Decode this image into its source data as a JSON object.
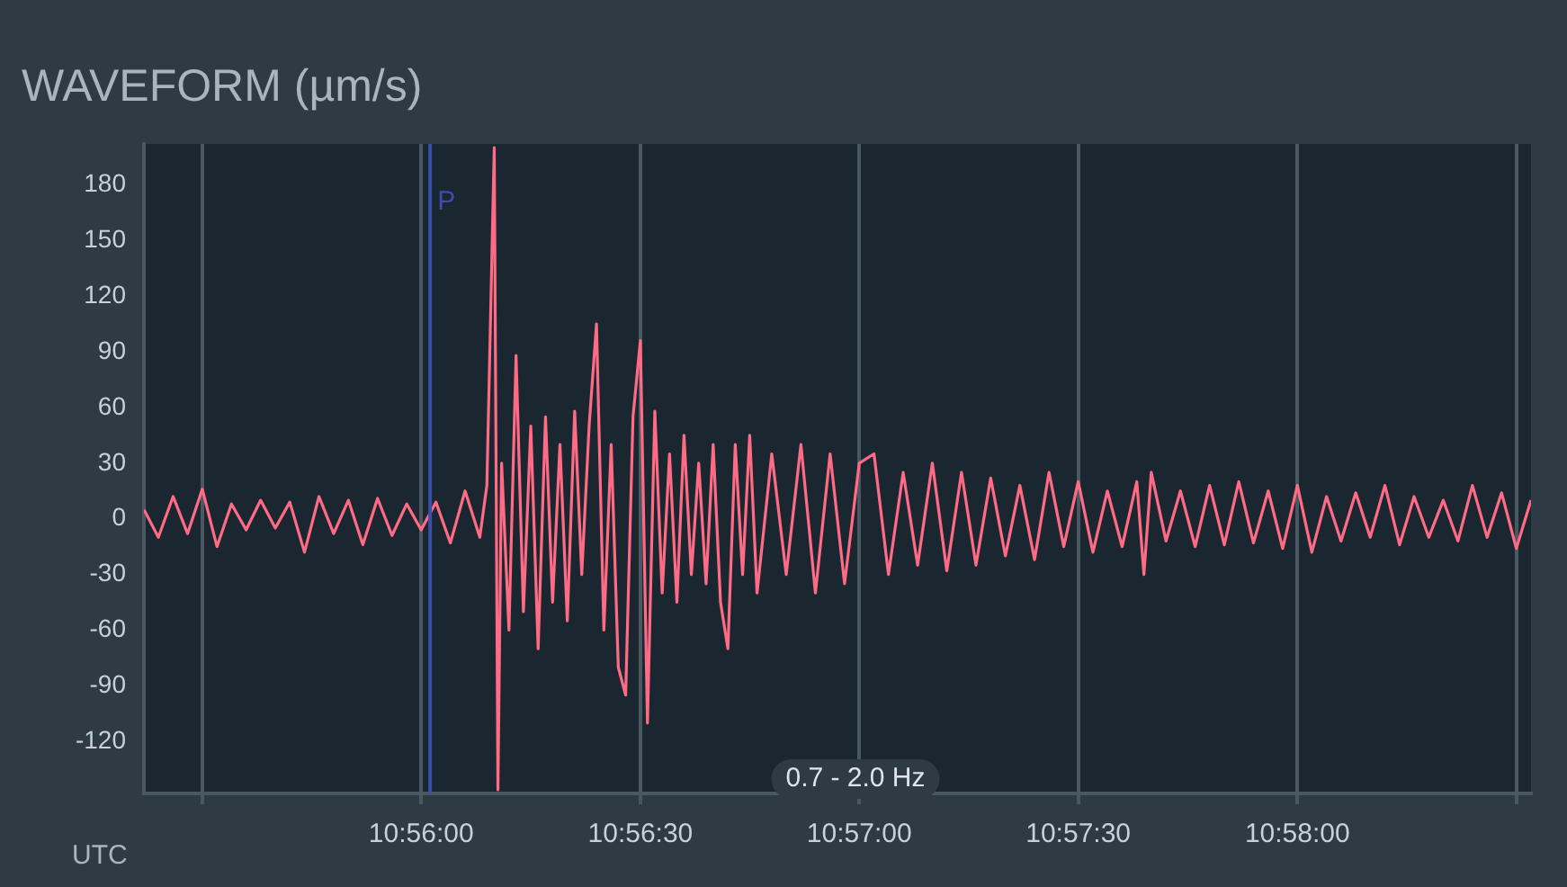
{
  "chart_data": {
    "type": "line",
    "title": "WAVEFORM (µm/s)",
    "xlabel": "UTC",
    "annotations": [
      "0.7 - 2.0 Hz"
    ],
    "ref_lines": [
      {
        "axis": "x",
        "value": 10.93367,
        "label": "P",
        "color": "#3b4fa8"
      }
    ],
    "xlim": [
      10.92278,
      10.97556
    ],
    "ylim": [
      -148,
      202
    ],
    "xticks": [
      {
        "value": 10.925,
        "label": null
      },
      {
        "value": 10.93333,
        "label": "10:56:00"
      },
      {
        "value": 10.94167,
        "label": "10:56:30"
      },
      {
        "value": 10.95,
        "label": "10:57:00"
      },
      {
        "value": 10.95833,
        "label": "10:57:30"
      },
      {
        "value": 10.96667,
        "label": "10:58:00"
      },
      {
        "value": 10.975,
        "label": null
      }
    ],
    "yticks": [
      -120,
      -90,
      -60,
      -30,
      0,
      30,
      60,
      90,
      120,
      150,
      180
    ],
    "grid": "x",
    "legend": false,
    "marker": "none",
    "line_style": "solid",
    "series": [
      {
        "color": "#ff6b85",
        "x": [
          10.92278,
          10.92333,
          10.92389,
          10.92444,
          10.925,
          10.92556,
          10.92611,
          10.92667,
          10.92722,
          10.92778,
          10.92833,
          10.92889,
          10.92944,
          10.93,
          10.93056,
          10.93111,
          10.93167,
          10.93222,
          10.93278,
          10.93333,
          10.93389,
          10.93444,
          10.935,
          10.93556,
          10.93583,
          10.93611,
          10.93625,
          10.93639,
          10.93667,
          10.93694,
          10.93722,
          10.9375,
          10.93778,
          10.93806,
          10.93833,
          10.93861,
          10.93889,
          10.93917,
          10.93944,
          10.93972,
          10.94,
          10.94028,
          10.94056,
          10.94083,
          10.94111,
          10.94139,
          10.94167,
          10.94194,
          10.94222,
          10.9425,
          10.94278,
          10.94306,
          10.94333,
          10.94361,
          10.94389,
          10.94417,
          10.94444,
          10.94472,
          10.945,
          10.94528,
          10.94556,
          10.94583,
          10.94611,
          10.94667,
          10.94722,
          10.94778,
          10.94833,
          10.94889,
          10.94944,
          10.95,
          10.95056,
          10.95111,
          10.95167,
          10.95222,
          10.95278,
          10.95333,
          10.95389,
          10.95444,
          10.955,
          10.95556,
          10.95611,
          10.95667,
          10.95722,
          10.95778,
          10.95833,
          10.95889,
          10.95944,
          10.96,
          10.96056,
          10.96083,
          10.96111,
          10.96167,
          10.96222,
          10.96278,
          10.96333,
          10.96389,
          10.96444,
          10.965,
          10.96556,
          10.96611,
          10.96667,
          10.96722,
          10.96778,
          10.96833,
          10.96889,
          10.96944,
          10.97,
          10.97056,
          10.97111,
          10.97167,
          10.97222,
          10.97278,
          10.97333,
          10.97389,
          10.97444,
          10.975,
          10.97556
        ],
        "values": [
          5,
          -10,
          12,
          -8,
          16,
          -15,
          8,
          -6,
          10,
          -5,
          9,
          -18,
          12,
          -8,
          10,
          -14,
          11,
          -9,
          8,
          -6,
          9,
          -13,
          15,
          -10,
          18,
          200,
          -146,
          30,
          -60,
          88,
          -50,
          50,
          -70,
          55,
          -45,
          40,
          -55,
          58,
          -30,
          50,
          105,
          -60,
          40,
          -80,
          -95,
          55,
          96,
          -110,
          58,
          -40,
          35,
          -45,
          45,
          -30,
          30,
          -35,
          40,
          -45,
          -70,
          40,
          -30,
          45,
          -40,
          35,
          -30,
          40,
          -40,
          35,
          -35,
          30,
          35,
          -30,
          25,
          -25,
          30,
          -28,
          25,
          -25,
          22,
          -20,
          18,
          -22,
          25,
          -15,
          20,
          -18,
          15,
          -15,
          20,
          -30,
          25,
          -12,
          15,
          -15,
          18,
          -14,
          20,
          -13,
          15,
          -16,
          18,
          -18,
          12,
          -12,
          14,
          -10,
          18,
          -14,
          12,
          -10,
          10,
          -12,
          18,
          -10,
          14,
          -16,
          10
        ]
      }
    ]
  }
}
